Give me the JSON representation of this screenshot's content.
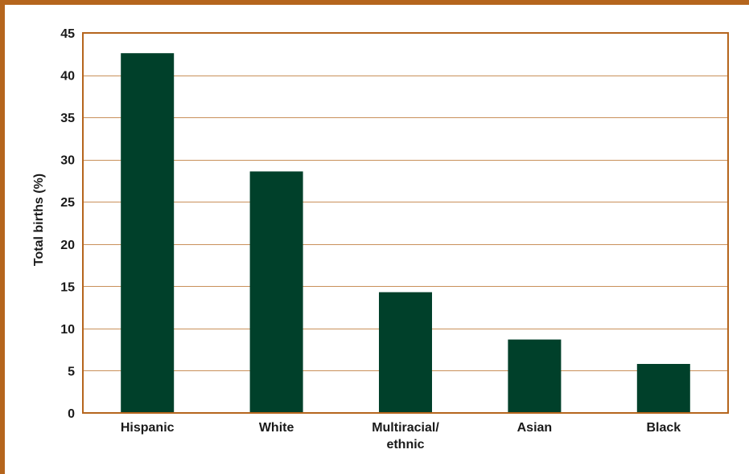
{
  "chart_data": {
    "type": "bar",
    "categories": [
      "Hispanic",
      "White",
      "Multiracial/ ethnic",
      "Asian",
      "Black"
    ],
    "category_lines": [
      [
        "Hispanic"
      ],
      [
        "White"
      ],
      [
        "Multiracial/",
        "ethnic"
      ],
      [
        "Asian"
      ],
      [
        "Black"
      ]
    ],
    "values": [
      42.6,
      28.6,
      14.3,
      8.7,
      5.8
    ],
    "title": "",
    "xlabel": "",
    "ylabel": "Total births (%)",
    "ylim": [
      0,
      45
    ],
    "yticks": [
      0,
      5,
      10,
      15,
      20,
      25,
      30,
      35,
      40,
      45
    ],
    "grid": true,
    "legend": "none",
    "colors": {
      "bar": "#00402a",
      "frame": "#b5651d",
      "grid": "#c9905a",
      "text": "#1a1a1a"
    }
  }
}
